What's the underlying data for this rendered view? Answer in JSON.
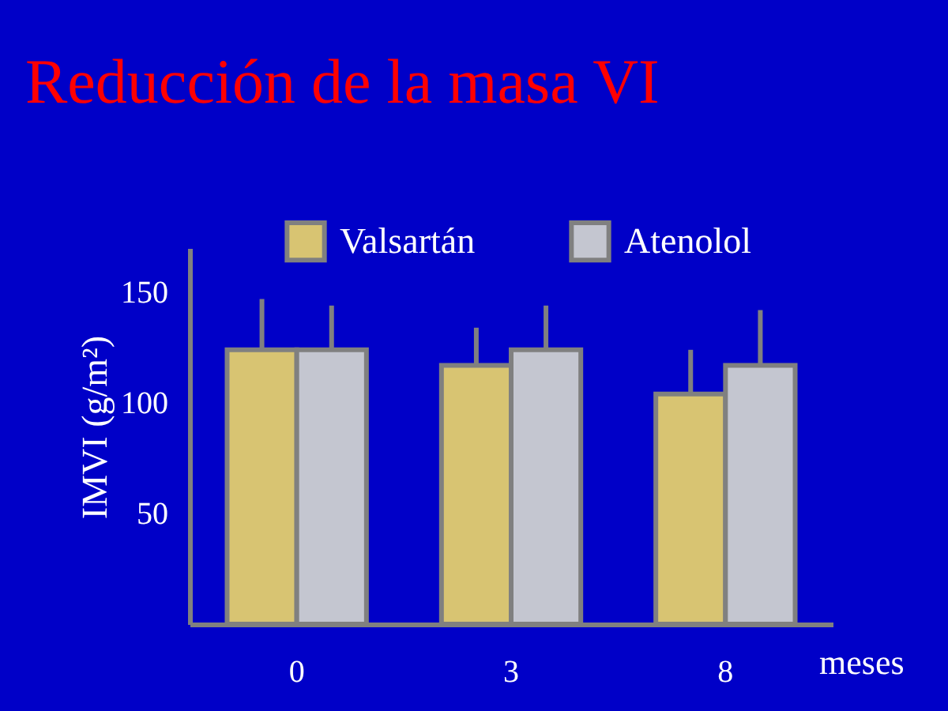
{
  "chart_data": {
    "type": "bar",
    "title": "Reducción de la masa VI",
    "ylabel": "IMVI (g/m²)",
    "xlabel": "meses",
    "categories": [
      "0",
      "3",
      "8"
    ],
    "series": [
      {
        "name": "Valsartán",
        "color": "#d8c472",
        "values": [
          124,
          117,
          104
        ],
        "errors": [
          23,
          17,
          20
        ]
      },
      {
        "name": "Atenolol",
        "color": "#c4c6d0",
        "values": [
          124,
          124,
          117
        ],
        "errors": [
          20,
          20,
          25
        ]
      }
    ],
    "ylim": [
      0,
      170
    ],
    "yticks": [
      50,
      100,
      150
    ],
    "grid": false,
    "legend": "top"
  }
}
